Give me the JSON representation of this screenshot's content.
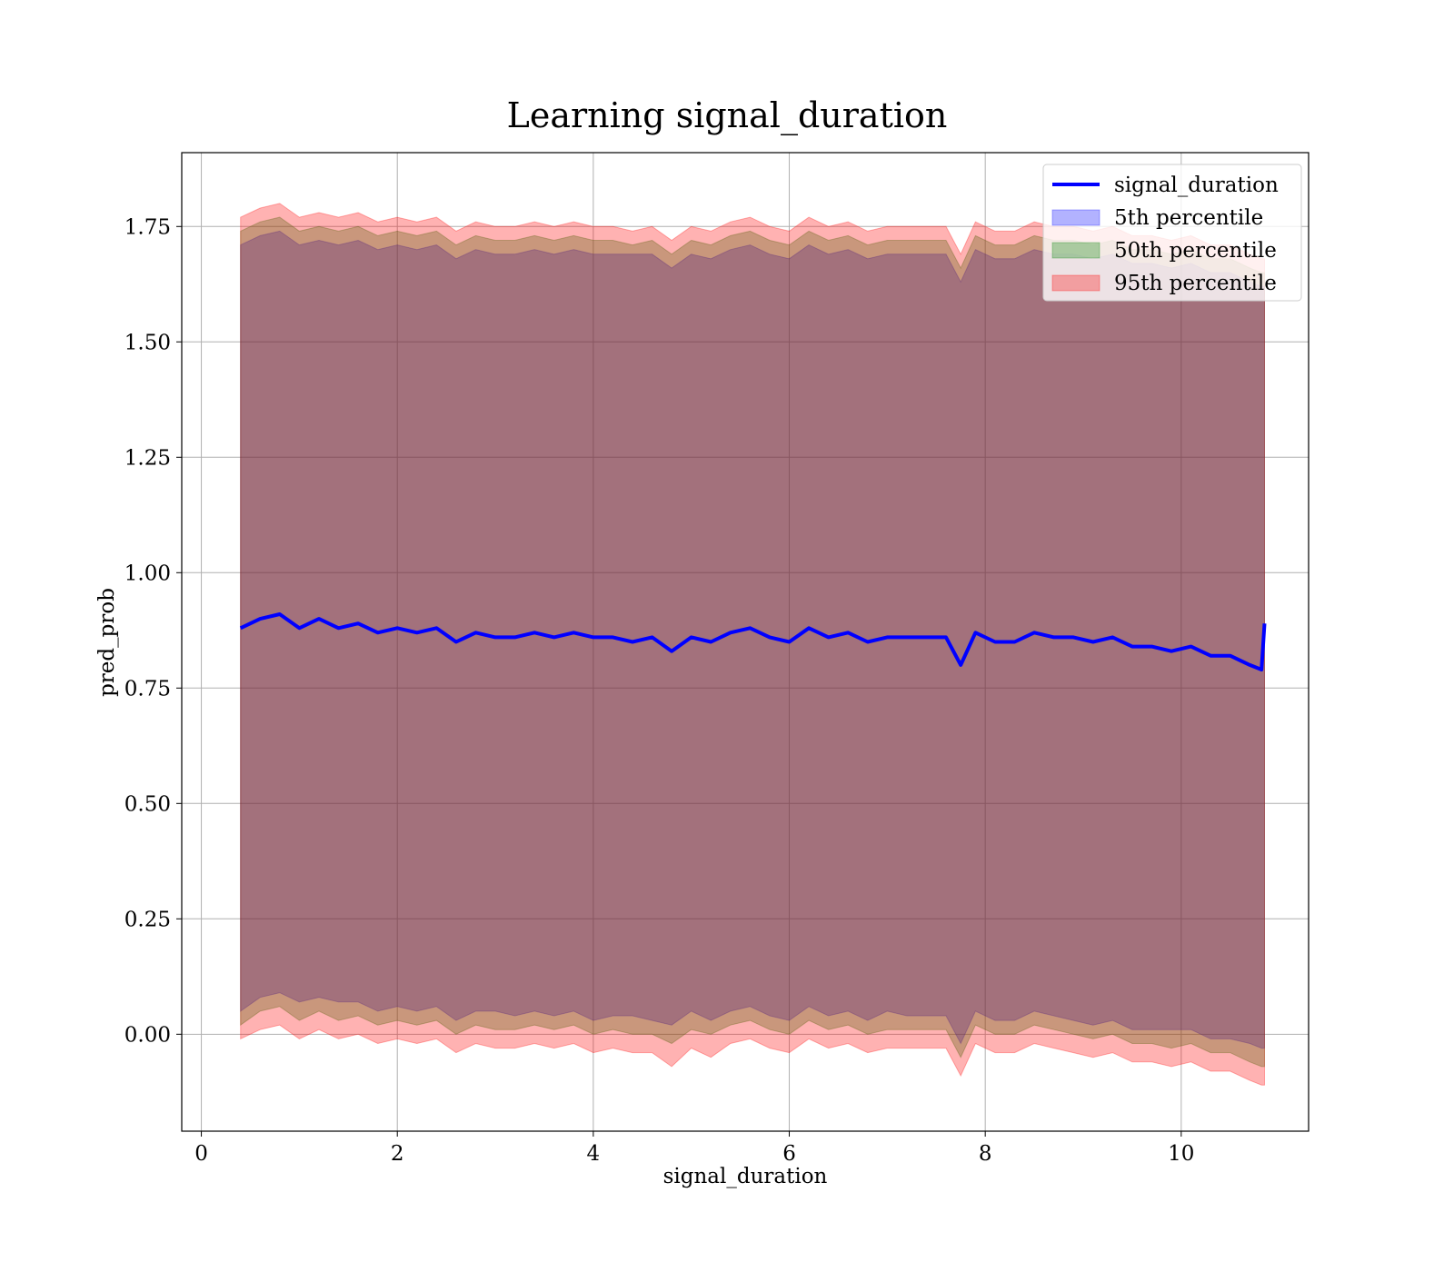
{
  "chart_data": {
    "type": "area",
    "title": "Learning signal_duration",
    "xlabel": "signal_duration",
    "ylabel": "pred_prob",
    "xlim": [
      -0.2,
      11.3
    ],
    "ylim": [
      -0.21,
      1.91
    ],
    "x_ticks": [
      "0",
      "2",
      "4",
      "6",
      "8",
      "10"
    ],
    "x_tick_values": [
      0,
      2,
      4,
      6,
      8,
      10
    ],
    "y_ticks": [
      "0.00",
      "0.25",
      "0.50",
      "0.75",
      "1.00",
      "1.25",
      "1.50",
      "1.75"
    ],
    "y_tick_values": [
      0,
      0.25,
      0.5,
      0.75,
      1.0,
      1.25,
      1.5,
      1.75
    ],
    "grid": true,
    "legend_position": "top-right",
    "x": [
      0.4,
      0.6,
      0.8,
      1.0,
      1.2,
      1.4,
      1.6,
      1.8,
      2.0,
      2.2,
      2.4,
      2.6,
      2.8,
      3.0,
      3.2,
      3.4,
      3.6,
      3.8,
      4.0,
      4.2,
      4.4,
      4.6,
      4.8,
      5.0,
      5.2,
      5.4,
      5.6,
      5.8,
      6.0,
      6.2,
      6.4,
      6.6,
      6.8,
      7.0,
      7.2,
      7.4,
      7.6,
      7.75,
      7.9,
      8.1,
      8.3,
      8.5,
      8.7,
      8.9,
      9.1,
      9.3,
      9.5,
      9.7,
      9.9,
      10.1,
      10.3,
      10.5,
      10.7,
      10.82,
      10.85
    ],
    "series": [
      {
        "name": "signal_duration",
        "role": "line",
        "color": "#0000ff",
        "values": [
          0.88,
          0.9,
          0.91,
          0.88,
          0.9,
          0.88,
          0.89,
          0.87,
          0.88,
          0.87,
          0.88,
          0.85,
          0.87,
          0.86,
          0.86,
          0.87,
          0.86,
          0.87,
          0.86,
          0.86,
          0.85,
          0.86,
          0.83,
          0.86,
          0.85,
          0.87,
          0.88,
          0.86,
          0.85,
          0.88,
          0.86,
          0.87,
          0.85,
          0.86,
          0.86,
          0.86,
          0.86,
          0.8,
          0.87,
          0.85,
          0.85,
          0.87,
          0.86,
          0.86,
          0.85,
          0.86,
          0.84,
          0.84,
          0.83,
          0.84,
          0.82,
          0.82,
          0.8,
          0.79,
          0.89
        ]
      },
      {
        "name": "5th percentile",
        "role": "band",
        "color": "#0000ff",
        "lower": [
          0.05,
          0.08,
          0.09,
          0.07,
          0.08,
          0.07,
          0.07,
          0.05,
          0.06,
          0.05,
          0.06,
          0.03,
          0.05,
          0.05,
          0.04,
          0.05,
          0.04,
          0.05,
          0.03,
          0.04,
          0.04,
          0.03,
          0.02,
          0.05,
          0.03,
          0.05,
          0.06,
          0.04,
          0.03,
          0.06,
          0.04,
          0.05,
          0.03,
          0.05,
          0.04,
          0.04,
          0.04,
          -0.02,
          0.05,
          0.03,
          0.03,
          0.05,
          0.04,
          0.03,
          0.02,
          0.03,
          0.01,
          0.01,
          0.01,
          0.01,
          -0.01,
          -0.01,
          -0.02,
          -0.03,
          -0.03
        ],
        "upper": [
          1.71,
          1.73,
          1.74,
          1.71,
          1.72,
          1.71,
          1.72,
          1.7,
          1.71,
          1.7,
          1.71,
          1.68,
          1.7,
          1.69,
          1.69,
          1.7,
          1.69,
          1.7,
          1.69,
          1.69,
          1.69,
          1.69,
          1.66,
          1.69,
          1.68,
          1.7,
          1.71,
          1.69,
          1.68,
          1.71,
          1.69,
          1.7,
          1.68,
          1.69,
          1.69,
          1.69,
          1.69,
          1.63,
          1.7,
          1.68,
          1.68,
          1.7,
          1.69,
          1.69,
          1.68,
          1.69,
          1.67,
          1.67,
          1.66,
          1.67,
          1.65,
          1.65,
          1.63,
          1.62,
          1.62
        ]
      },
      {
        "name": "50th percentile",
        "role": "band",
        "color": "#008000",
        "lower": [
          0.02,
          0.05,
          0.06,
          0.03,
          0.05,
          0.03,
          0.04,
          0.02,
          0.03,
          0.02,
          0.03,
          0.0,
          0.02,
          0.01,
          0.01,
          0.02,
          0.01,
          0.02,
          0.0,
          0.01,
          0.0,
          0.0,
          -0.02,
          0.01,
          0.0,
          0.02,
          0.03,
          0.01,
          0.0,
          0.03,
          0.01,
          0.02,
          0.0,
          0.01,
          0.01,
          0.01,
          0.01,
          -0.05,
          0.02,
          0.0,
          0.0,
          0.02,
          0.01,
          0.0,
          -0.01,
          0.0,
          -0.02,
          -0.02,
          -0.03,
          -0.02,
          -0.04,
          -0.04,
          -0.06,
          -0.07,
          -0.07
        ],
        "upper": [
          1.74,
          1.76,
          1.77,
          1.74,
          1.75,
          1.74,
          1.75,
          1.73,
          1.74,
          1.73,
          1.74,
          1.71,
          1.73,
          1.72,
          1.72,
          1.73,
          1.72,
          1.73,
          1.72,
          1.72,
          1.71,
          1.72,
          1.69,
          1.72,
          1.71,
          1.73,
          1.74,
          1.72,
          1.71,
          1.74,
          1.72,
          1.73,
          1.71,
          1.72,
          1.72,
          1.72,
          1.72,
          1.66,
          1.73,
          1.71,
          1.71,
          1.73,
          1.72,
          1.72,
          1.71,
          1.72,
          1.7,
          1.7,
          1.69,
          1.7,
          1.68,
          1.68,
          1.66,
          1.65,
          1.65
        ]
      },
      {
        "name": "95th percentile",
        "role": "band",
        "color": "#ff0000",
        "lower": [
          -0.01,
          0.01,
          0.02,
          -0.01,
          0.01,
          -0.01,
          0.0,
          -0.02,
          -0.01,
          -0.02,
          -0.01,
          -0.04,
          -0.02,
          -0.03,
          -0.03,
          -0.02,
          -0.03,
          -0.02,
          -0.04,
          -0.03,
          -0.04,
          -0.04,
          -0.07,
          -0.03,
          -0.05,
          -0.02,
          -0.01,
          -0.03,
          -0.04,
          -0.01,
          -0.03,
          -0.02,
          -0.04,
          -0.03,
          -0.03,
          -0.03,
          -0.03,
          -0.09,
          -0.02,
          -0.04,
          -0.04,
          -0.02,
          -0.03,
          -0.04,
          -0.05,
          -0.04,
          -0.06,
          -0.06,
          -0.07,
          -0.06,
          -0.08,
          -0.08,
          -0.1,
          -0.11,
          -0.11
        ],
        "upper": [
          1.77,
          1.79,
          1.8,
          1.77,
          1.78,
          1.77,
          1.78,
          1.76,
          1.77,
          1.76,
          1.77,
          1.74,
          1.76,
          1.75,
          1.75,
          1.76,
          1.75,
          1.76,
          1.75,
          1.75,
          1.74,
          1.75,
          1.72,
          1.75,
          1.74,
          1.76,
          1.77,
          1.75,
          1.74,
          1.77,
          1.75,
          1.76,
          1.74,
          1.75,
          1.75,
          1.75,
          1.75,
          1.69,
          1.76,
          1.74,
          1.74,
          1.76,
          1.75,
          1.75,
          1.74,
          1.75,
          1.73,
          1.73,
          1.72,
          1.73,
          1.71,
          1.71,
          1.69,
          1.68,
          1.68
        ]
      }
    ]
  }
}
